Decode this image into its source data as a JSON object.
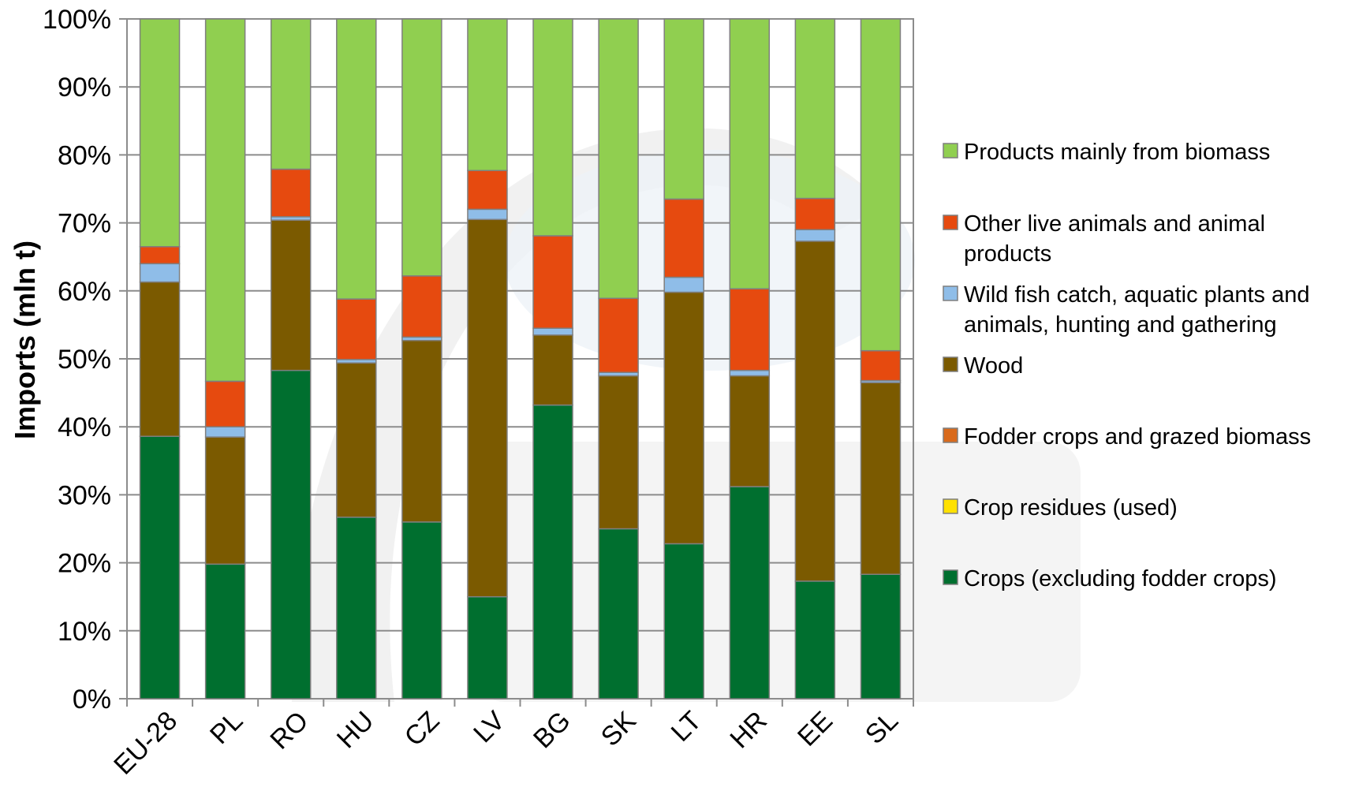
{
  "chart_data": {
    "type": "bar",
    "stacked": "percent",
    "categories": [
      "EU-28",
      "PL",
      "RO",
      "HU",
      "CZ",
      "LV",
      "BG",
      "SK",
      "LT",
      "HR",
      "EE",
      "SL"
    ],
    "ylabel": "Imports  (mln t)",
    "xlabel": "",
    "ylim": [
      0,
      100
    ],
    "yticks": [
      "0%",
      "10%",
      "20%",
      "30%",
      "40%",
      "50%",
      "60%",
      "70%",
      "80%",
      "90%",
      "100%"
    ],
    "grid": true,
    "legend_position": "right",
    "series": [
      {
        "name": "Crops (excluding fodder crops)",
        "color": "#006f2f",
        "values": [
          38.6,
          19.8,
          48.3,
          26.7,
          26.0,
          15.0,
          43.2,
          25.0,
          22.8,
          31.2,
          17.3,
          18.3
        ]
      },
      {
        "name": "Crop residues (used)",
        "color": "#ffe100",
        "values": [
          0,
          0,
          0,
          0,
          0,
          0,
          0,
          0,
          0,
          0,
          0,
          0
        ]
      },
      {
        "name": "Fodder crops and grazed biomass",
        "color": "#d96a1c",
        "values": [
          0,
          0,
          0,
          0,
          0,
          0,
          0,
          0,
          0,
          0,
          0,
          0
        ]
      },
      {
        "name": "Wood",
        "color": "#7b5a00",
        "values": [
          22.7,
          18.7,
          22.1,
          22.7,
          26.7,
          55.5,
          10.3,
          22.5,
          37.0,
          16.3,
          50.0,
          28.2
        ]
      },
      {
        "name": "Wild fish catch, aquatic plants and animals, hunting and gathering",
        "color": "#8fbde8",
        "values": [
          2.7,
          1.5,
          0.5,
          0.5,
          0.5,
          1.5,
          1.0,
          0.5,
          2.2,
          0.8,
          1.7,
          0.3
        ]
      },
      {
        "name": "Other live animals and animal products",
        "color": "#e64a0f",
        "values": [
          2.5,
          6.7,
          7.0,
          8.9,
          9.0,
          5.7,
          13.6,
          10.9,
          11.5,
          12.0,
          4.6,
          4.4
        ]
      },
      {
        "name": "Products mainly from biomass",
        "color": "#90cf50",
        "values": [
          33.5,
          53.3,
          22.1,
          41.2,
          37.8,
          22.3,
          31.9,
          41.1,
          26.5,
          39.7,
          26.4,
          48.8
        ]
      }
    ],
    "legend_order": [
      "Products mainly from biomass",
      "Other live animals and animal products",
      "Wild fish catch, aquatic plants and animals, hunting and gathering",
      "Wood",
      "Fodder crops and grazed biomass",
      "Crop residues (used)",
      "Crops (excluding fodder crops)"
    ]
  }
}
